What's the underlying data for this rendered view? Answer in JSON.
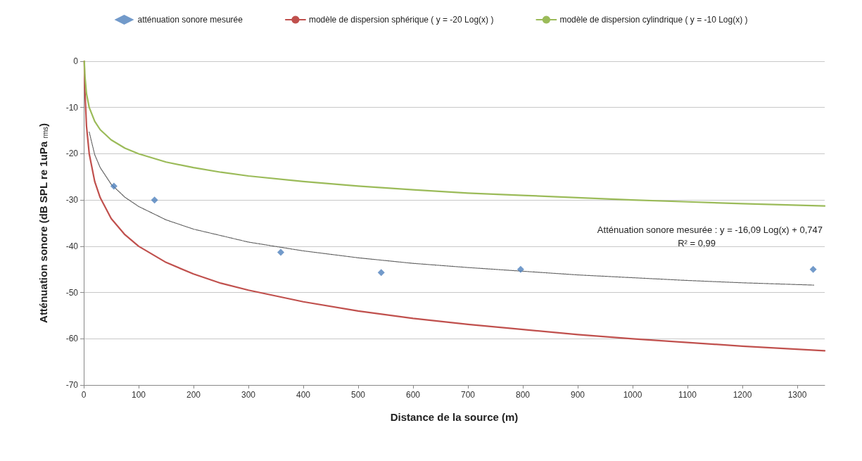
{
  "chart_data": {
    "type": "line",
    "xlabel": "Distance de la source (m)",
    "ylabel": "Atténuation sonore (dB SPL re 1uPa $_{rms}$)",
    "xlim": [
      0,
      1350
    ],
    "xticks": [
      0,
      100,
      200,
      300,
      400,
      500,
      600,
      700,
      800,
      900,
      1000,
      1100,
      1200,
      1300
    ],
    "ylim": [
      -70,
      0
    ],
    "yticks": [
      -70,
      -60,
      -50,
      -40,
      -30,
      -20,
      -10,
      0
    ],
    "grid": "y",
    "legend": "top",
    "marker": "none",
    "series": [
      {
        "name": "atténuation sonore mesurée",
        "type": "scatter",
        "marker": "diamond",
        "color": "#4f81bd",
        "x": [
          55,
          129,
          359,
          542,
          796,
          1329
        ],
        "values": [
          -27,
          -30,
          -41.3,
          -45.7,
          -45,
          -45
        ]
      },
      {
        "name": "modèle de dispersion sphérique ( y = -20 Log(x) )",
        "color": "#c0504d",
        "x": [
          1,
          2,
          5,
          10,
          20,
          30,
          50,
          75,
          100,
          150,
          200,
          250,
          300,
          400,
          500,
          600,
          700,
          800,
          900,
          1000,
          1100,
          1200,
          1350
        ],
        "values": [
          0,
          -6,
          -14,
          -20,
          -26,
          -29.5,
          -34,
          -37.5,
          -40,
          -43.5,
          -46,
          -48,
          -49.5,
          -52,
          -54,
          -55.6,
          -56.9,
          -58,
          -59.1,
          -60,
          -60.8,
          -61.6,
          -62.6
        ]
      },
      {
        "name": "modèle de dispersion cylindrique ( y = -10 Log(x) )",
        "color": "#9bbb59",
        "x": [
          1,
          2,
          5,
          10,
          20,
          30,
          50,
          75,
          100,
          150,
          200,
          250,
          300,
          400,
          500,
          600,
          700,
          800,
          900,
          1000,
          1100,
          1200,
          1350
        ],
        "values": [
          0,
          -3,
          -7,
          -10,
          -13,
          -14.8,
          -17,
          -18.8,
          -20,
          -21.8,
          -23,
          -24,
          -24.8,
          -26,
          -27,
          -27.8,
          -28.5,
          -29,
          -29.5,
          -30,
          -30.4,
          -30.8,
          -31.3
        ]
      },
      {
        "color": "#595959",
        "line_style": "dotted",
        "x": [
          10,
          20,
          30,
          50,
          75,
          100,
          150,
          200,
          300,
          400,
          500,
          600,
          700,
          800,
          900,
          1000,
          1100,
          1200,
          1330
        ],
        "values": [
          -15.3,
          -20.2,
          -23,
          -26.6,
          -29.4,
          -31.4,
          -34.3,
          -36.3,
          -39.1,
          -41,
          -42.5,
          -43.7,
          -44.6,
          -45.4,
          -46.2,
          -46.8,
          -47.4,
          -47.9,
          -48.4
        ]
      }
    ],
    "annotations": [
      "Atténuation sonore mesurée : y = -16,09 Log(x) + 0,747",
      "R² = 0,99"
    ]
  }
}
